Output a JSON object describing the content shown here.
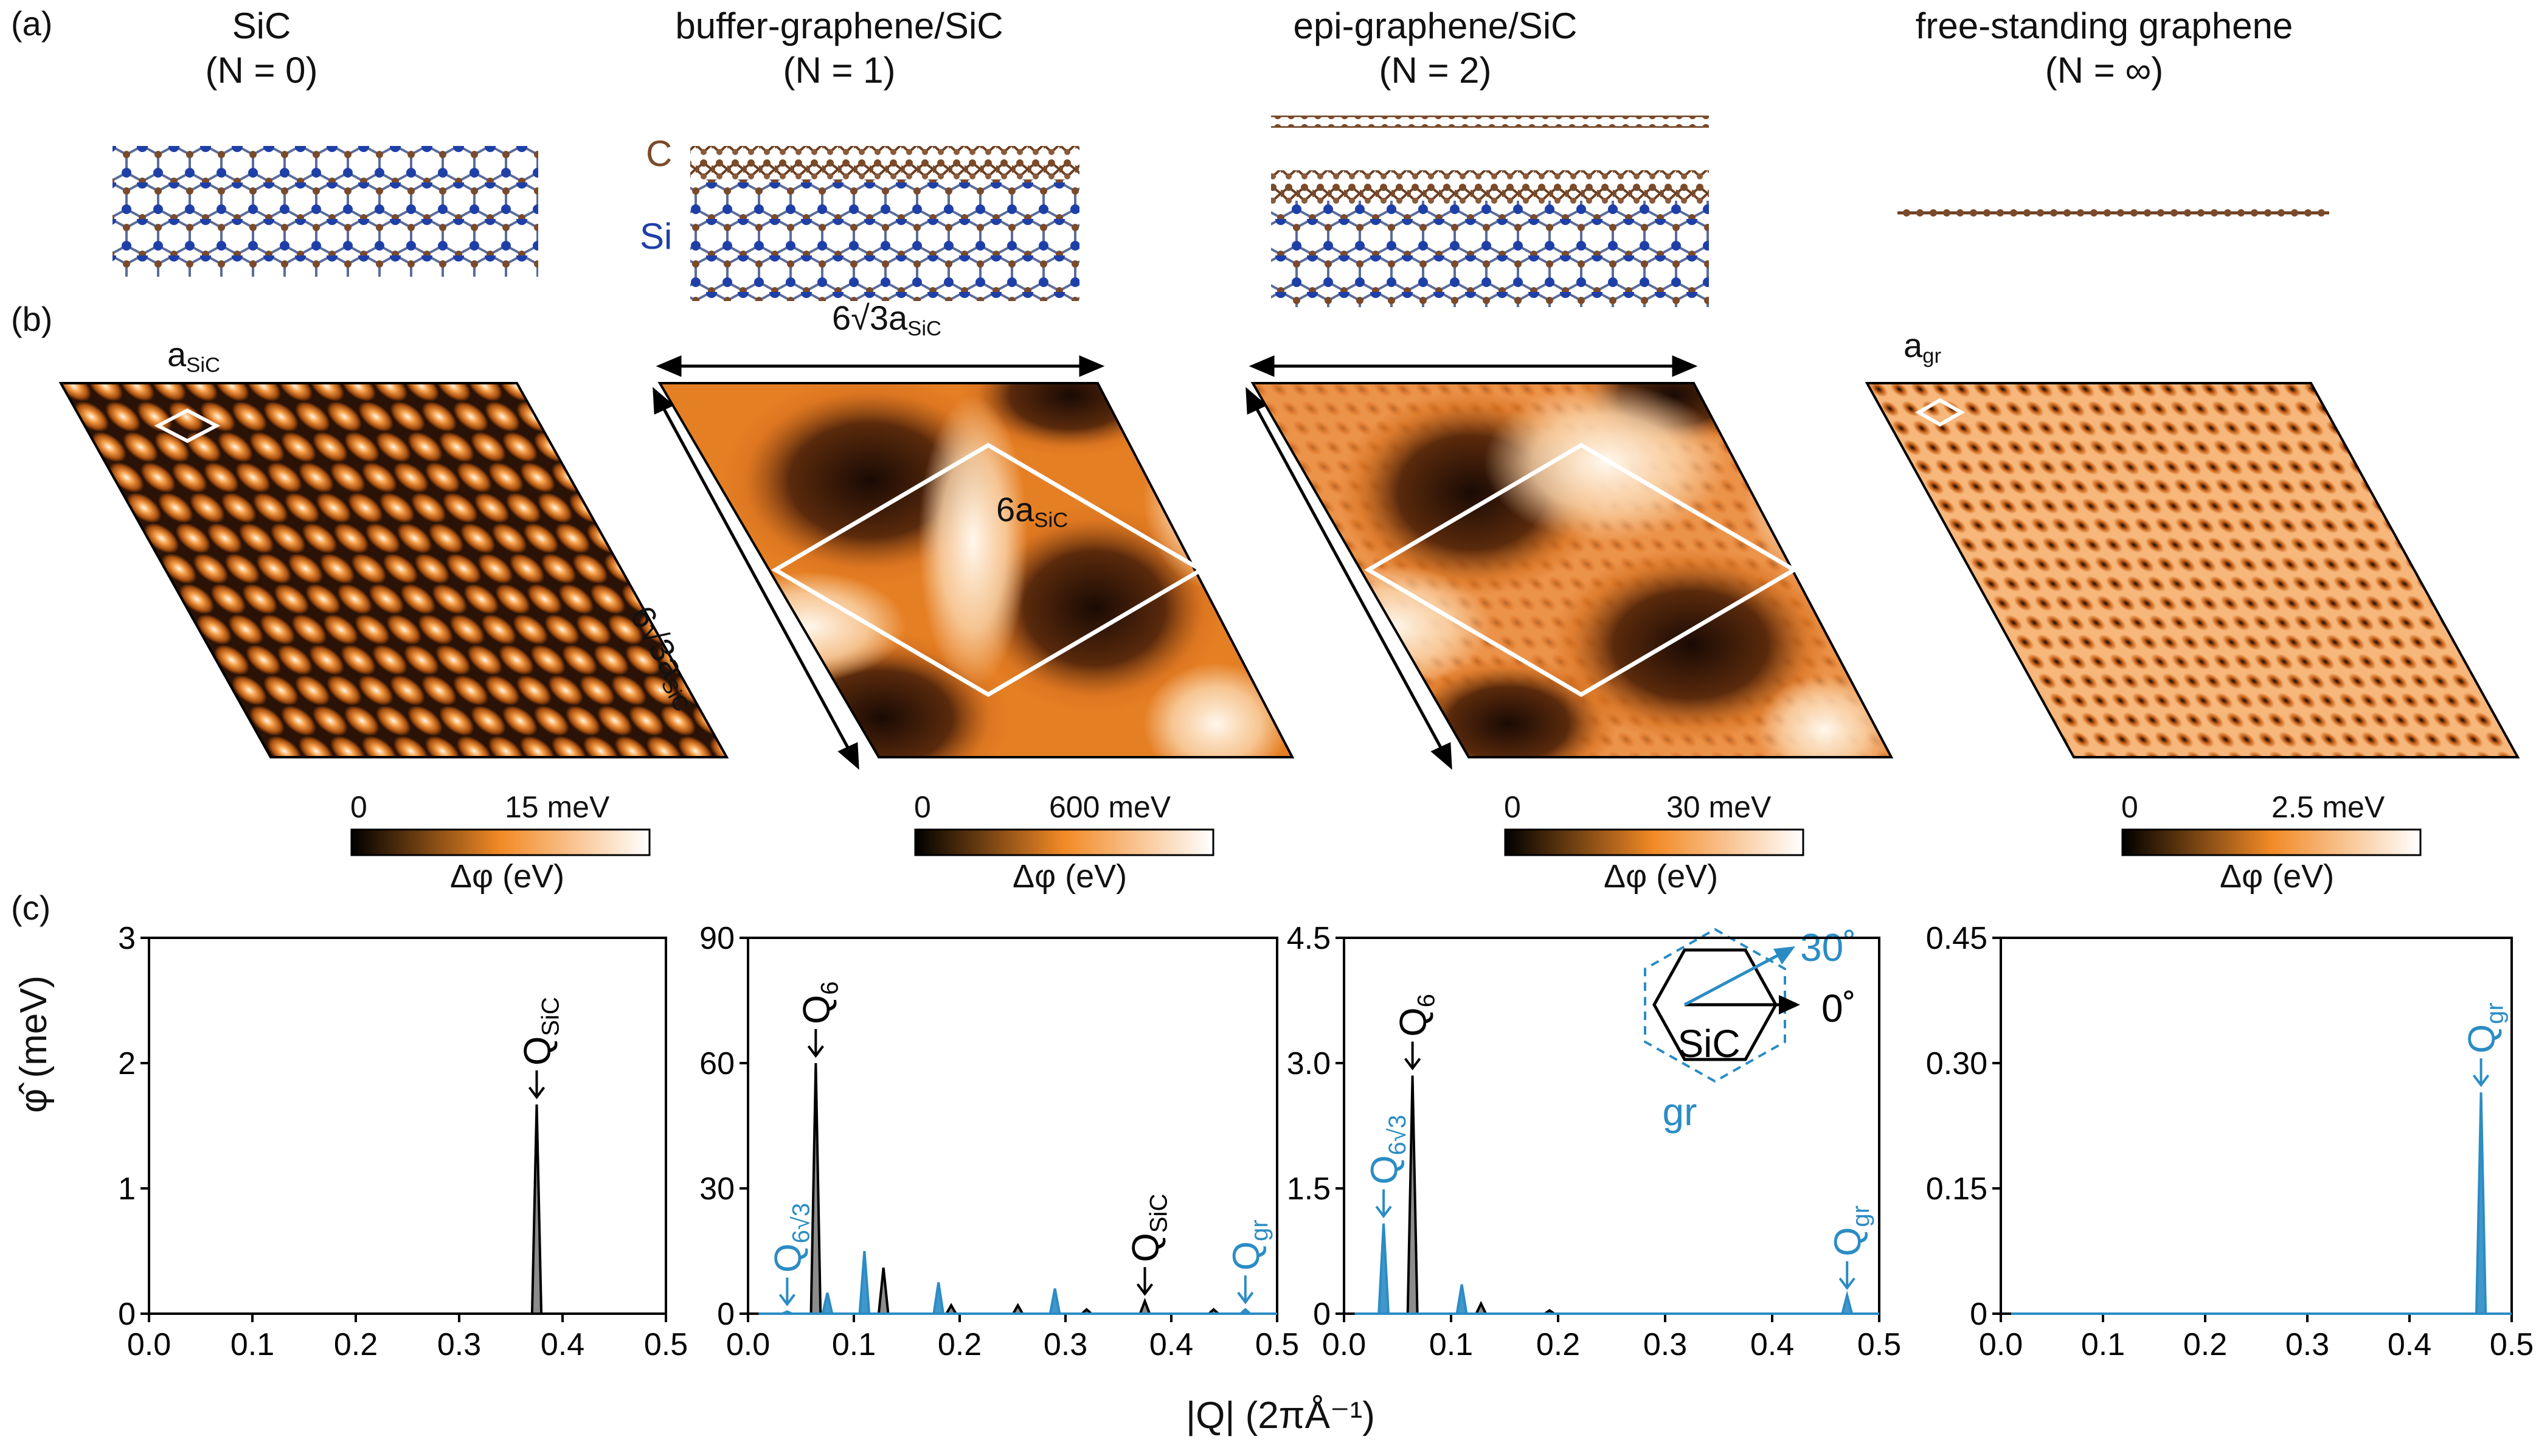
{
  "panel_labels": {
    "a": "(a)",
    "b": "(b)",
    "c": "(c)"
  },
  "columns": [
    {
      "title": "SiC",
      "n": "(N = 0)",
      "cbar_min": "0",
      "cbar_max": "15 meV",
      "cbar_label": "Δφ (eV)"
    },
    {
      "title": "buffer-graphene/SiC",
      "n": "(N = 1)",
      "cbar_min": "0",
      "cbar_max": "600 meV",
      "cbar_label": "Δφ (eV)"
    },
    {
      "title": "epi-graphene/SiC",
      "n": "(N = 2)",
      "cbar_min": "0",
      "cbar_max": "30 meV",
      "cbar_label": "Δφ (eV)"
    },
    {
      "title": "free-standing graphene",
      "n": "(N = ∞)",
      "cbar_min": "0",
      "cbar_max": "2.5 meV",
      "cbar_label": "Δφ (eV)"
    }
  ],
  "structure_labels": {
    "carbon": "C",
    "silicon": "Si"
  },
  "map_annotations": {
    "a_sic": "a",
    "a_sic_sub": "SiC",
    "six_root3": "6√3a",
    "six_root3_sub": "SiC",
    "six_a": "6a",
    "six_a_sub": "SiC",
    "a_gr": "a",
    "a_gr_sub": "gr"
  },
  "inset": {
    "label_sic": "SiC",
    "label_gr": "gr",
    "angle_30": "30˚",
    "angle_0": "0˚"
  },
  "colors": {
    "black_series": "#000000",
    "blue_series": "#2b8cc4",
    "silicon": "#1f3fa8",
    "carbon": "#7a4a2a"
  },
  "chart_data": [
    {
      "type": "line",
      "ylabel": "φ̂ (meV)",
      "xlabel": "|Q| (2πÅ⁻¹)",
      "xlim": [
        0,
        0.5
      ],
      "ylim": [
        0,
        3
      ],
      "xticks": [
        "0.0",
        "0.1",
        "0.2",
        "0.3",
        "0.4",
        "0.5"
      ],
      "yticks": [
        "0",
        "1",
        "2",
        "3"
      ],
      "series": [
        {
          "name": "0°",
          "color": "#000000",
          "peaks": [
            [
              0.375,
              1.67
            ]
          ]
        }
      ],
      "annotations": [
        {
          "text": "Q",
          "sub": "SiC",
          "color": "#000000",
          "x": 0.375,
          "y": 1.67
        }
      ]
    },
    {
      "type": "line",
      "xlim": [
        0,
        0.5
      ],
      "ylim": [
        0,
        90
      ],
      "xticks": [
        "0.0",
        "0.1",
        "0.2",
        "0.3",
        "0.4",
        "0.5"
      ],
      "yticks": [
        "0",
        "30",
        "60",
        "90"
      ],
      "series": [
        {
          "name": "0°",
          "color": "#000000",
          "peaks": [
            [
              0.064,
              60
            ],
            [
              0.128,
              11
            ],
            [
              0.192,
              2
            ],
            [
              0.255,
              2
            ],
            [
              0.32,
              1
            ],
            [
              0.375,
              3
            ],
            [
              0.44,
              1
            ]
          ]
        },
        {
          "name": "30°",
          "color": "#2b8cc4",
          "peaks": [
            [
              0.037,
              0.5
            ],
            [
              0.075,
              5
            ],
            [
              0.11,
              15
            ],
            [
              0.18,
              7.5
            ],
            [
              0.29,
              6
            ],
            [
              0.47,
              1
            ]
          ]
        }
      ],
      "annotations": [
        {
          "text": "Q",
          "sub": "6",
          "color": "#000000",
          "x": 0.064,
          "y": 60
        },
        {
          "text": "Q",
          "sub": "6√3",
          "color": "#2b8cc4",
          "x": 0.037,
          "y": 0.5
        },
        {
          "text": "Q",
          "sub": "SiC",
          "color": "#000000",
          "x": 0.375,
          "y": 3
        },
        {
          "text": "Q",
          "sub": "gr",
          "color": "#2b8cc4",
          "x": 0.47,
          "y": 1
        }
      ]
    },
    {
      "type": "line",
      "xlim": [
        0,
        0.5
      ],
      "ylim": [
        0,
        4.5
      ],
      "xticks": [
        "0.0",
        "0.1",
        "0.2",
        "0.3",
        "0.4",
        "0.5"
      ],
      "yticks": [
        "0",
        "1.5",
        "3.0",
        "4.5"
      ],
      "series": [
        {
          "name": "0°",
          "color": "#000000",
          "peaks": [
            [
              0.064,
              2.85
            ],
            [
              0.128,
              0.12
            ],
            [
              0.192,
              0.04
            ]
          ]
        },
        {
          "name": "30°",
          "color": "#2b8cc4",
          "peaks": [
            [
              0.037,
              1.08
            ],
            [
              0.11,
              0.35
            ],
            [
              0.47,
              0.22
            ]
          ]
        }
      ],
      "annotations": [
        {
          "text": "Q",
          "sub": "6",
          "color": "#000000",
          "x": 0.064,
          "y": 2.85
        },
        {
          "text": "Q",
          "sub": "6√3",
          "color": "#2b8cc4",
          "x": 0.037,
          "y": 1.08
        },
        {
          "text": "Q",
          "sub": "gr",
          "color": "#2b8cc4",
          "x": 0.47,
          "y": 0.22
        }
      ]
    },
    {
      "type": "line",
      "xlim": [
        0,
        0.5
      ],
      "ylim": [
        0,
        0.45
      ],
      "xticks": [
        "0.0",
        "0.1",
        "0.2",
        "0.3",
        "0.4",
        "0.5"
      ],
      "yticks": [
        "0",
        "0.15",
        "0.30",
        "0.45"
      ],
      "series": [
        {
          "name": "30°",
          "color": "#2b8cc4",
          "peaks": [
            [
              0.47,
              0.265
            ]
          ]
        }
      ],
      "annotations": [
        {
          "text": "Q",
          "sub": "gr",
          "color": "#2b8cc4",
          "x": 0.47,
          "y": 0.265
        }
      ]
    }
  ]
}
